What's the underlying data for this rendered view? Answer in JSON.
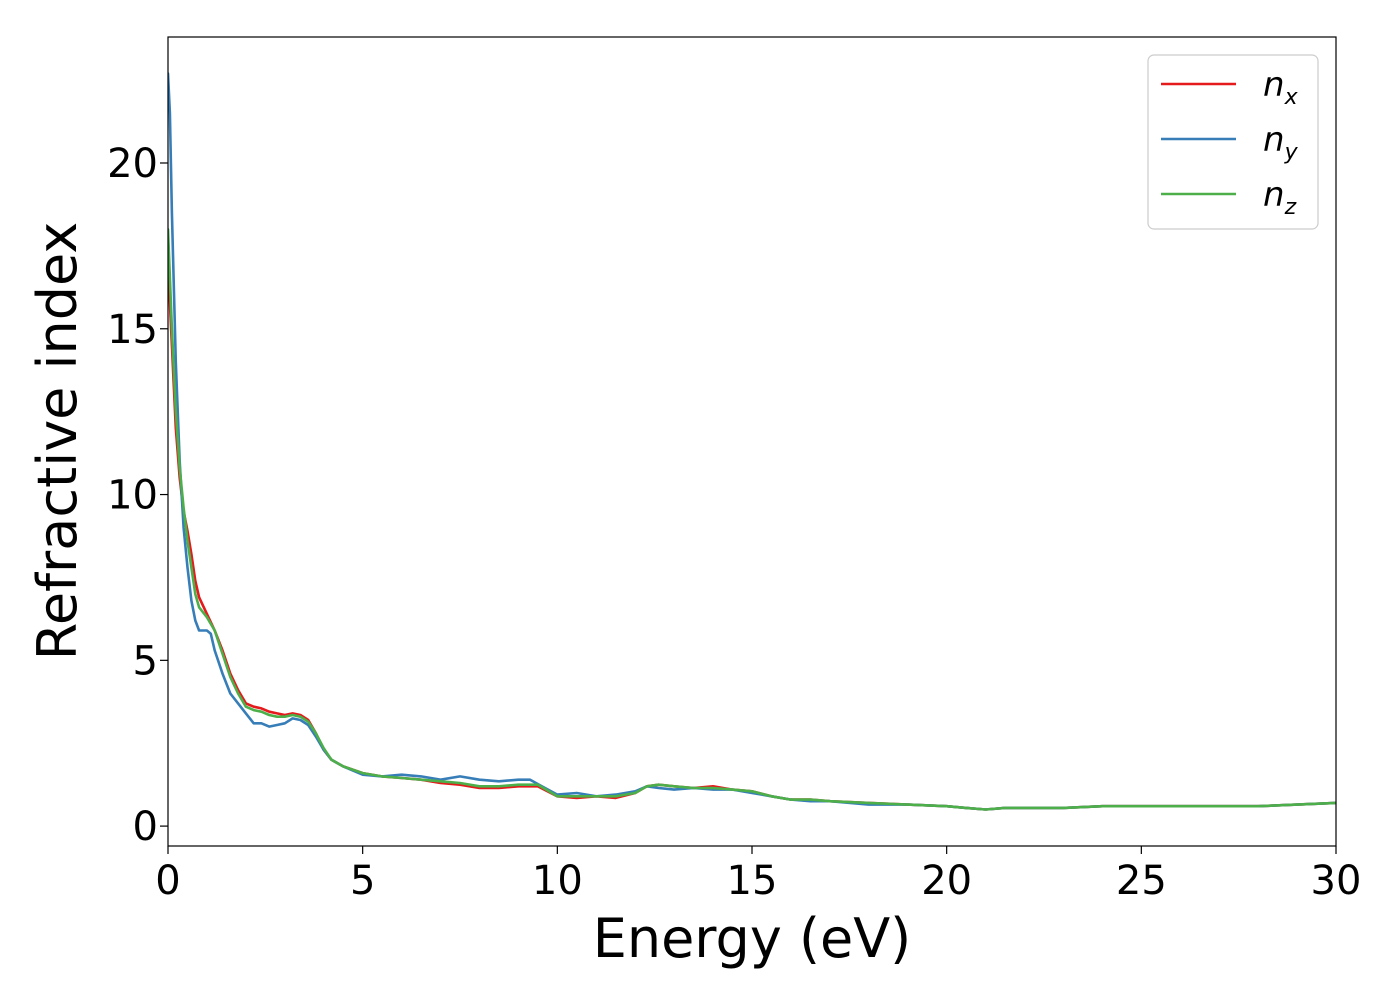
{
  "chart_data": {
    "type": "line",
    "xlabel": "Energy (eV)",
    "ylabel": "Refractive index",
    "xlim": [
      0,
      30
    ],
    "ylim": [
      -0.6,
      23.8
    ],
    "xticks": [
      0,
      5,
      10,
      15,
      20,
      25,
      30
    ],
    "yticks": [
      0,
      5,
      10,
      15,
      20
    ],
    "grid": false,
    "legend_position": "top-right",
    "series": [
      {
        "name": "n",
        "subscript": "x",
        "color": "#e41a1c",
        "x": [
          0,
          0.1,
          0.2,
          0.3,
          0.4,
          0.5,
          0.6,
          0.7,
          0.8,
          1.0,
          1.2,
          1.4,
          1.6,
          1.8,
          2.0,
          2.2,
          2.4,
          2.6,
          2.8,
          3.0,
          3.2,
          3.4,
          3.6,
          3.8,
          4.0,
          4.2,
          4.5,
          5.0,
          5.5,
          6.0,
          6.5,
          7.0,
          7.5,
          8.0,
          8.5,
          9.0,
          9.5,
          10.0,
          10.5,
          11.0,
          11.5,
          12.0,
          12.3,
          12.6,
          13.0,
          13.5,
          14.0,
          14.5,
          15.0,
          15.5,
          16.0,
          16.5,
          17.0,
          18.0,
          19.0,
          20.0,
          20.5,
          21.0,
          21.5,
          22.0,
          23.0,
          24.0,
          25.0,
          26.0,
          27.0,
          28.0,
          29.0,
          30.0
        ],
        "y": [
          17.0,
          14.5,
          12.0,
          10.5,
          9.5,
          8.9,
          8.2,
          7.4,
          6.9,
          6.4,
          5.9,
          5.3,
          4.6,
          4.1,
          3.7,
          3.6,
          3.55,
          3.45,
          3.4,
          3.35,
          3.4,
          3.35,
          3.2,
          2.8,
          2.3,
          2.0,
          1.8,
          1.6,
          1.5,
          1.45,
          1.4,
          1.3,
          1.25,
          1.15,
          1.15,
          1.2,
          1.2,
          0.9,
          0.85,
          0.9,
          0.85,
          1.0,
          1.2,
          1.25,
          1.2,
          1.15,
          1.2,
          1.1,
          1.05,
          0.9,
          0.8,
          0.8,
          0.75,
          0.7,
          0.65,
          0.6,
          0.55,
          0.5,
          0.55,
          0.55,
          0.55,
          0.6,
          0.6,
          0.6,
          0.6,
          0.6,
          0.65,
          0.7
        ]
      },
      {
        "name": "n",
        "subscript": "y",
        "color": "#377eb8",
        "x": [
          0,
          0.05,
          0.1,
          0.2,
          0.3,
          0.4,
          0.5,
          0.6,
          0.7,
          0.8,
          1.0,
          1.1,
          1.2,
          1.4,
          1.6,
          1.8,
          2.0,
          2.2,
          2.4,
          2.6,
          2.8,
          3.0,
          3.2,
          3.4,
          3.6,
          3.8,
          4.0,
          4.2,
          4.5,
          5.0,
          5.5,
          6.0,
          6.5,
          7.0,
          7.5,
          8.0,
          8.5,
          9.0,
          9.3,
          9.6,
          10.0,
          10.5,
          11.0,
          11.5,
          12.0,
          12.3,
          12.6,
          13.0,
          13.5,
          14.0,
          14.5,
          15.0,
          15.5,
          16.0,
          16.5,
          17.0,
          18.0,
          19.0,
          20.0,
          20.5,
          21.0,
          21.5,
          22.0,
          23.0,
          24.0,
          25.0,
          26.0,
          27.0,
          28.0,
          29.0,
          30.0
        ],
        "y": [
          22.7,
          21.5,
          18.5,
          14.0,
          11.0,
          9.0,
          7.8,
          6.8,
          6.2,
          5.9,
          5.9,
          5.8,
          5.3,
          4.6,
          4.0,
          3.7,
          3.4,
          3.1,
          3.1,
          3.0,
          3.05,
          3.1,
          3.25,
          3.2,
          3.05,
          2.7,
          2.3,
          2.0,
          1.8,
          1.55,
          1.5,
          1.55,
          1.5,
          1.4,
          1.5,
          1.4,
          1.35,
          1.4,
          1.4,
          1.2,
          0.95,
          1.0,
          0.9,
          0.95,
          1.05,
          1.2,
          1.15,
          1.1,
          1.15,
          1.1,
          1.1,
          1.0,
          0.9,
          0.8,
          0.75,
          0.75,
          0.65,
          0.65,
          0.6,
          0.55,
          0.5,
          0.55,
          0.55,
          0.55,
          0.6,
          0.6,
          0.6,
          0.6,
          0.6,
          0.65,
          0.7
        ]
      },
      {
        "name": "n",
        "subscript": "z",
        "color": "#4daf4a",
        "x": [
          0,
          0.1,
          0.2,
          0.3,
          0.4,
          0.5,
          0.6,
          0.7,
          0.8,
          1.0,
          1.2,
          1.4,
          1.6,
          1.8,
          2.0,
          2.2,
          2.4,
          2.6,
          2.8,
          3.0,
          3.2,
          3.4,
          3.6,
          3.8,
          4.0,
          4.2,
          4.5,
          5.0,
          5.5,
          6.0,
          6.5,
          7.0,
          7.5,
          8.0,
          8.5,
          9.0,
          9.5,
          10.0,
          10.5,
          11.0,
          11.5,
          12.0,
          12.3,
          12.6,
          13.0,
          13.5,
          14.0,
          14.5,
          15.0,
          15.5,
          16.0,
          16.5,
          17.0,
          18.0,
          19.0,
          20.0,
          20.5,
          21.0,
          21.5,
          22.0,
          23.0,
          24.0,
          25.0,
          26.0,
          27.0,
          28.0,
          29.0,
          30.0
        ],
        "y": [
          18.0,
          15.0,
          12.5,
          10.8,
          9.6,
          8.6,
          7.8,
          7.0,
          6.6,
          6.3,
          5.9,
          5.2,
          4.5,
          4.0,
          3.6,
          3.5,
          3.45,
          3.35,
          3.3,
          3.3,
          3.35,
          3.3,
          3.15,
          2.8,
          2.35,
          2.0,
          1.8,
          1.6,
          1.5,
          1.45,
          1.4,
          1.35,
          1.3,
          1.2,
          1.2,
          1.25,
          1.25,
          0.9,
          0.9,
          0.9,
          0.9,
          1.0,
          1.2,
          1.25,
          1.2,
          1.15,
          1.15,
          1.1,
          1.05,
          0.9,
          0.8,
          0.8,
          0.75,
          0.7,
          0.65,
          0.6,
          0.55,
          0.5,
          0.55,
          0.55,
          0.55,
          0.6,
          0.6,
          0.6,
          0.6,
          0.6,
          0.65,
          0.7
        ]
      }
    ]
  }
}
